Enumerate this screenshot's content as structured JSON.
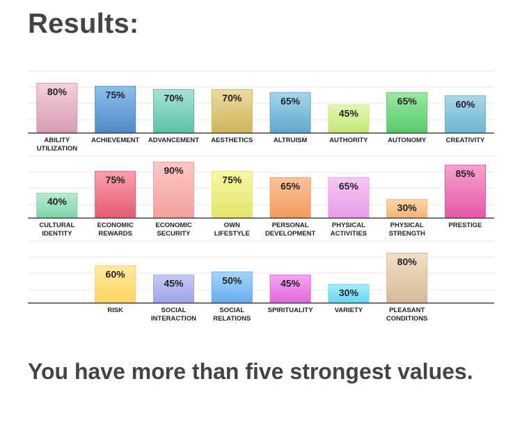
{
  "header": {
    "title": "Results:"
  },
  "summary": {
    "text": "You have more than five strongest values."
  },
  "chart_data": {
    "type": "bar",
    "ylim": [
      0,
      100
    ],
    "value_suffix": "%",
    "grid": true,
    "rows": [
      {
        "categories": [
          [
            "ABILITY",
            "UTILIZATION"
          ],
          [
            "ACHIEVEMENT"
          ],
          [
            "ADVANCEMENT"
          ],
          [
            "AESTHETICS"
          ],
          [
            "ALTRUISM"
          ],
          [
            "AUTHORITY"
          ],
          [
            "AUTONOMY"
          ],
          [
            "CREATIVITY"
          ]
        ],
        "values": [
          80,
          75,
          70,
          70,
          65,
          45,
          65,
          60
        ],
        "colors": [
          [
            "#f4d0dc",
            "#d89ab3"
          ],
          [
            "#8cc0ec",
            "#4f88c7"
          ],
          [
            "#a7e4d6",
            "#5cbfa8"
          ],
          [
            "#ecdca0",
            "#cfb45d"
          ],
          [
            "#a6d6ec",
            "#5fa8cc"
          ],
          [
            "#e4f8b0",
            "#c2e57a"
          ],
          [
            "#9ce8a6",
            "#58c968"
          ],
          [
            "#a8d8ea",
            "#6db3d0"
          ]
        ]
      },
      {
        "categories": [
          [
            "CULTURAL",
            "IDENTITY"
          ],
          [
            "ECONOMIC",
            "REWARDS"
          ],
          [
            "ECONOMIC",
            "SECURITY"
          ],
          [
            "OWN",
            "LIFESTYLE"
          ],
          [
            "PERSONAL",
            "DEVELOPMENT"
          ],
          [
            "PHYSICAL",
            "ACTIVITIES"
          ],
          [
            "PHYSICAL",
            "STRENGTH"
          ],
          [
            "PRESTIGE"
          ]
        ],
        "values": [
          40,
          75,
          90,
          75,
          65,
          65,
          30,
          85
        ],
        "colors": [
          [
            "#b6eccf",
            "#7fd3a9"
          ],
          [
            "#f7a2ac",
            "#e75a72"
          ],
          [
            "#fcc8c4",
            "#f5a09e"
          ],
          [
            "#f8f8a4",
            "#e4e46a"
          ],
          [
            "#fcc49a",
            "#f29a5e"
          ],
          [
            "#f6c9f4",
            "#e89be6"
          ],
          [
            "#fcd6a8",
            "#f4b576"
          ],
          [
            "#f7a2cf",
            "#e656a6"
          ]
        ]
      },
      {
        "categories": [
          [],
          [
            "RISK"
          ],
          [
            "SOCIAL",
            "INTERACTION"
          ],
          [
            "SOCIAL",
            "RELATIONS"
          ],
          [
            "SPIRITUALITY"
          ],
          [
            "VARIETY"
          ],
          [
            "PLEASANT",
            "CONDITIONS"
          ],
          []
        ],
        "values": [
          null,
          60,
          45,
          50,
          45,
          30,
          80,
          null
        ],
        "colors": [
          null,
          [
            "#ffeaa0",
            "#fcd460"
          ],
          [
            "#c8caf4",
            "#9ea3e8"
          ],
          [
            "#a6d6fa",
            "#64acf0"
          ],
          [
            "#f4a6f2",
            "#e266dc"
          ],
          [
            "#a6eefa",
            "#64d8f2"
          ],
          [
            "#f0e0c8",
            "#d7b996"
          ],
          null
        ]
      }
    ]
  }
}
